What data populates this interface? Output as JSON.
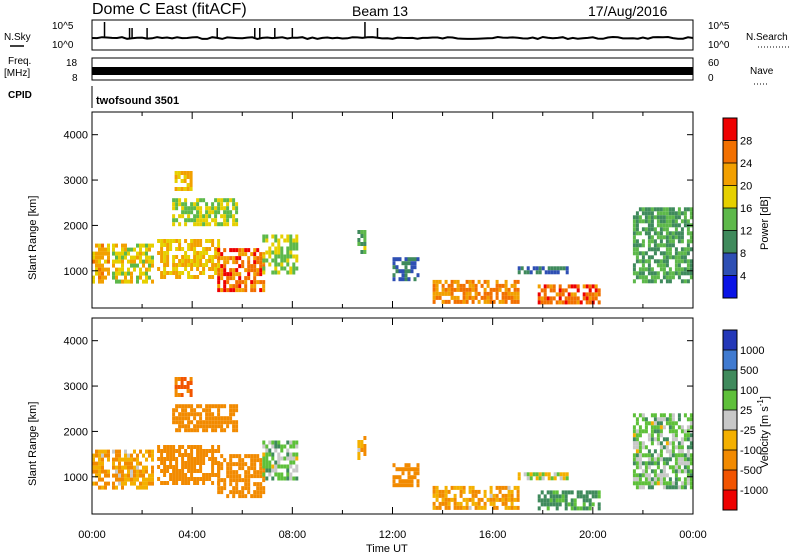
{
  "header": {
    "station": "Dome C East (fitACF)",
    "beam": "Beam 13",
    "date": "17/Aug/2016"
  },
  "panel_labels": {
    "nsky": "N.Sky",
    "nsearch": "N.Search",
    "freq": "Freq.",
    "freq_unit": "[MHz]",
    "nave": "Nave",
    "cpid": "CPID",
    "cpid_value": "twofsound 3501"
  },
  "noise_axis": {
    "left_ticks": [
      "10^5",
      "10^0"
    ],
    "right_ticks": [
      "10^5",
      "10^0"
    ]
  },
  "freq_axis": {
    "left_ticks": [
      "18",
      "8"
    ],
    "right_ticks": [
      "60",
      "0"
    ]
  },
  "x_axis": {
    "label": "Time UT",
    "ticks": [
      "00:00",
      "04:00",
      "08:00",
      "12:00",
      "16:00",
      "20:00",
      "00:00"
    ],
    "range_hours": [
      0,
      24
    ]
  },
  "y_axis": {
    "label": "Slant Range [km]",
    "ticks": [
      "1000",
      "2000",
      "3000",
      "4000"
    ],
    "range_km": [
      180,
      4500
    ]
  },
  "power_scale": {
    "label": "Power [dB]",
    "ticks": [
      "4",
      "8",
      "12",
      "16",
      "20",
      "24",
      "28"
    ],
    "colors": [
      "#0a14e6",
      "#2e4fb4",
      "#3f8a5c",
      "#5db84a",
      "#e6d000",
      "#f2a000",
      "#f27000",
      "#ee0000"
    ]
  },
  "velocity_scale": {
    "label": "Velocity [m s^-1]",
    "ticks": [
      "1000",
      "500",
      "100",
      "25",
      "-25",
      "-100",
      "-500",
      "-1000"
    ],
    "colors": [
      "#2438b8",
      "#3f7ad0",
      "#3f8a5c",
      "#5ec03a",
      "#c8c8c8",
      "#f4b000",
      "#f28a00",
      "#f25400",
      "#ee0000"
    ]
  },
  "colors": {
    "frame": "#000000",
    "grid_bg": "#ffffff"
  },
  "chart_data": {
    "type": "heatmap",
    "x_unit": "hours UT",
    "y_unit": "km",
    "power_regions": [
      {
        "t": [
          0.0,
          0.7
        ],
        "r": [
          800,
          1600
        ],
        "power_db": 22
      },
      {
        "t": [
          0.8,
          2.4
        ],
        "r": [
          800,
          1600
        ],
        "power_db": 18
      },
      {
        "t": [
          2.6,
          5.0
        ],
        "r": [
          900,
          1700
        ],
        "power_db": 20
      },
      {
        "t": [
          5.0,
          6.8
        ],
        "r": [
          600,
          1500
        ],
        "power_db": 26
      },
      {
        "t": [
          6.8,
          8.2
        ],
        "r": [
          1000,
          1800
        ],
        "power_db": 16
      },
      {
        "t": [
          3.2,
          5.8
        ],
        "r": [
          2000,
          2600
        ],
        "power_db": 16
      },
      {
        "t": [
          3.3,
          3.9
        ],
        "r": [
          2800,
          3200
        ],
        "power_db": 20
      },
      {
        "t": [
          10.6,
          10.9
        ],
        "r": [
          1400,
          1900
        ],
        "power_db": 14
      },
      {
        "t": [
          12.0,
          13.0
        ],
        "r": [
          800,
          1300
        ],
        "power_db": 8
      },
      {
        "t": [
          13.6,
          17.0
        ],
        "r": [
          300,
          800
        ],
        "power_db": 24
      },
      {
        "t": [
          17.0,
          19.0
        ],
        "r": [
          1000,
          1100
        ],
        "power_db": 8
      },
      {
        "t": [
          17.8,
          20.2
        ],
        "r": [
          300,
          700
        ],
        "power_db": 26
      },
      {
        "t": [
          21.6,
          23.9
        ],
        "r": [
          800,
          2400
        ],
        "power_db": 12
      }
    ],
    "velocity_regions": [
      {
        "t": [
          0.0,
          0.7
        ],
        "r": [
          800,
          1600
        ],
        "velocity": -100
      },
      {
        "t": [
          0.8,
          2.4
        ],
        "r": [
          800,
          1600
        ],
        "velocity": -100
      },
      {
        "t": [
          2.6,
          5.0
        ],
        "r": [
          900,
          1700
        ],
        "velocity": -300
      },
      {
        "t": [
          5.0,
          6.8
        ],
        "r": [
          600,
          1500
        ],
        "velocity": -200
      },
      {
        "t": [
          6.8,
          8.2
        ],
        "r": [
          1000,
          1800
        ],
        "velocity": 50
      },
      {
        "t": [
          3.2,
          5.8
        ],
        "r": [
          2000,
          2600
        ],
        "velocity": -200
      },
      {
        "t": [
          3.3,
          3.9
        ],
        "r": [
          2800,
          3200
        ],
        "velocity": -500
      },
      {
        "t": [
          10.6,
          10.9
        ],
        "r": [
          1400,
          1900
        ],
        "velocity": -100
      },
      {
        "t": [
          12.0,
          13.0
        ],
        "r": [
          800,
          1300
        ],
        "velocity": -300
      },
      {
        "t": [
          13.6,
          17.0
        ],
        "r": [
          300,
          800
        ],
        "velocity": -100
      },
      {
        "t": [
          17.0,
          19.0
        ],
        "r": [
          1000,
          1100
        ],
        "velocity": 0
      },
      {
        "t": [
          17.8,
          20.2
        ],
        "r": [
          300,
          700
        ],
        "velocity": 150
      },
      {
        "t": [
          21.6,
          23.9
        ],
        "r": [
          800,
          2400
        ],
        "velocity": 50
      }
    ]
  }
}
